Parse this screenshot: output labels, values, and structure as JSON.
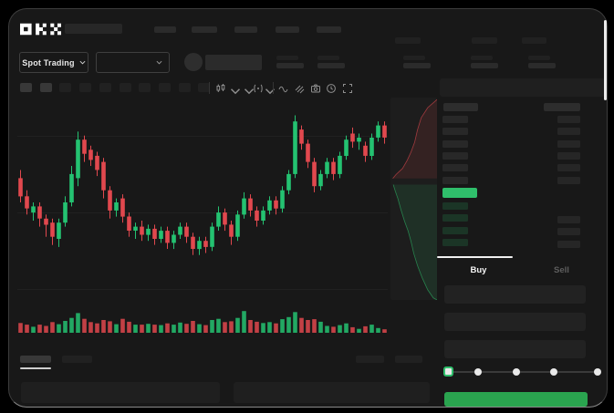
{
  "app": {
    "brand": "OKX"
  },
  "colors": {
    "up": "#24c271",
    "down": "#e1484e",
    "accent_green": "#2fbf6b",
    "button_green": "#2aa44f",
    "background": "#181818"
  },
  "market_selector": {
    "label": "Spot Trading"
  },
  "orderbook": {
    "ask_rows": 6,
    "bid_rows": 4,
    "bid_right_rows": 3
  },
  "order_panel": {
    "tabs": [
      {
        "label": "Buy"
      },
      {
        "label": "Sell"
      }
    ],
    "active_tab": "Buy",
    "slider": {
      "positions": 5,
      "active_index": 0
    }
  },
  "chart_data": {
    "type": "candlestick",
    "title": "",
    "ylim": [
      0,
      100
    ],
    "grid": "faint-horizontal",
    "colors": {
      "up": "#24c271",
      "down": "#e1484e"
    },
    "candles": [
      [
        62,
        66,
        50,
        53
      ],
      [
        53,
        56,
        44,
        47
      ],
      [
        45,
        50,
        41,
        48
      ],
      [
        48,
        50,
        38,
        42
      ],
      [
        42,
        44,
        33,
        39
      ],
      [
        40,
        42,
        29,
        33
      ],
      [
        32,
        42,
        28,
        40
      ],
      [
        40,
        53,
        38,
        50
      ],
      [
        50,
        68,
        48,
        64
      ],
      [
        62,
        85,
        58,
        81
      ],
      [
        81,
        83,
        70,
        74
      ],
      [
        76,
        78,
        68,
        71
      ],
      [
        73,
        75,
        63,
        66
      ],
      [
        70,
        72,
        52,
        56
      ],
      [
        56,
        58,
        42,
        46
      ],
      [
        46,
        52,
        43,
        50
      ],
      [
        52,
        54,
        40,
        43
      ],
      [
        43,
        45,
        33,
        36
      ],
      [
        36,
        40,
        32,
        38
      ],
      [
        38,
        41,
        31,
        34
      ],
      [
        34,
        39,
        31,
        37
      ],
      [
        37,
        39,
        29,
        32
      ],
      [
        32,
        38,
        30,
        36
      ],
      [
        36,
        38,
        27,
        30
      ],
      [
        30,
        36,
        27,
        34
      ],
      [
        34,
        40,
        32,
        38
      ],
      [
        38,
        40,
        30,
        33
      ],
      [
        33,
        35,
        24,
        27
      ],
      [
        27,
        33,
        24,
        31
      ],
      [
        31,
        33,
        25,
        28
      ],
      [
        28,
        40,
        26,
        38
      ],
      [
        38,
        48,
        36,
        45
      ],
      [
        45,
        47,
        36,
        39
      ],
      [
        39,
        41,
        29,
        33
      ],
      [
        33,
        46,
        31,
        44
      ],
      [
        44,
        55,
        42,
        52
      ],
      [
        52,
        54,
        43,
        46
      ],
      [
        46,
        48,
        38,
        41
      ],
      [
        41,
        48,
        39,
        46
      ],
      [
        46,
        53,
        44,
        51
      ],
      [
        51,
        53,
        44,
        47
      ],
      [
        47,
        58,
        45,
        56
      ],
      [
        56,
        66,
        54,
        64
      ],
      [
        64,
        93,
        62,
        90
      ],
      [
        86,
        88,
        76,
        79
      ],
      [
        79,
        81,
        67,
        70
      ],
      [
        70,
        72,
        55,
        58
      ],
      [
        58,
        66,
        56,
        64
      ],
      [
        64,
        72,
        62,
        70
      ],
      [
        70,
        72,
        61,
        64
      ],
      [
        64,
        75,
        62,
        73
      ],
      [
        73,
        83,
        71,
        81
      ],
      [
        84,
        87,
        77,
        80
      ],
      [
        80,
        84,
        76,
        82
      ],
      [
        78,
        80,
        70,
        73
      ],
      [
        73,
        84,
        71,
        82
      ],
      [
        82,
        90,
        80,
        88
      ],
      [
        88,
        90,
        79,
        82
      ]
    ],
    "volume": [
      38,
      30,
      20,
      30,
      24,
      42,
      32,
      48,
      62,
      85,
      58,
      42,
      36,
      52,
      46,
      32,
      58,
      44,
      30,
      30,
      34,
      30,
      28,
      36,
      30,
      40,
      34,
      48,
      32,
      28,
      52,
      58,
      42,
      46,
      62,
      95,
      52,
      44,
      38,
      42,
      36,
      56,
      66,
      90,
      62,
      52,
      56,
      44,
      24,
      20,
      28,
      36,
      18,
      10,
      22,
      30,
      14,
      8
    ],
    "depth": {
      "asks": [
        [
          100,
          1
        ],
        [
          80,
          5
        ],
        [
          66,
          10
        ],
        [
          58,
          16
        ],
        [
          52,
          22
        ],
        [
          44,
          27
        ],
        [
          36,
          31
        ],
        [
          26,
          35
        ],
        [
          12,
          38
        ],
        [
          5,
          40
        ]
      ],
      "bids": [
        [
          6,
          43
        ],
        [
          10,
          46
        ],
        [
          16,
          50
        ],
        [
          22,
          55
        ],
        [
          30,
          61
        ],
        [
          38,
          66
        ],
        [
          44,
          71
        ],
        [
          50,
          77
        ],
        [
          58,
          83
        ],
        [
          68,
          89
        ],
        [
          80,
          95
        ],
        [
          92,
          99
        ],
        [
          100,
          100
        ]
      ]
    }
  }
}
